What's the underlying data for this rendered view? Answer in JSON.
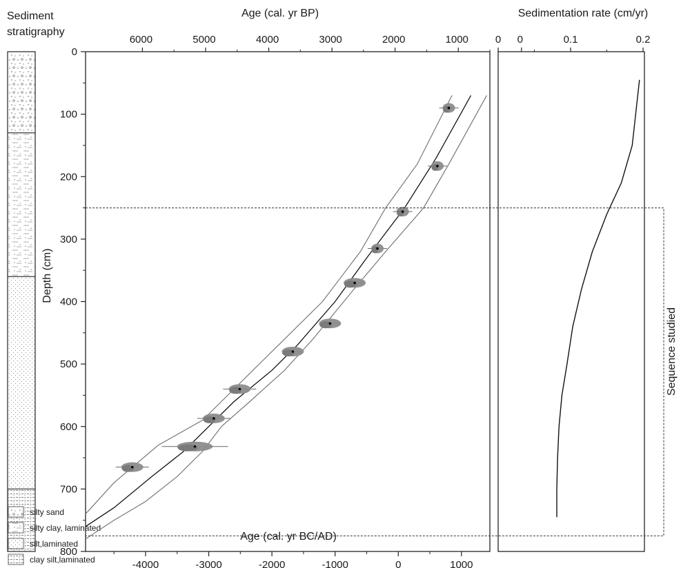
{
  "chart_data": [
    {
      "type": "line",
      "title": "",
      "top_axis_label": "Age  (cal. yr BP)",
      "top_ticks": [
        6000,
        5000,
        4000,
        3000,
        2000,
        1000,
        0
      ],
      "xlabel": "Age (cal. yr BC/AD)",
      "x_ticks": [
        -4000,
        -3000,
        -2000,
        -1000,
        0,
        1000
      ],
      "xlim": [
        -4950,
        1450
      ],
      "ylabel": "Depth (cm)",
      "y_ticks": [
        0,
        100,
        200,
        300,
        400,
        500,
        600,
        700,
        800
      ],
      "ylim": [
        0,
        800
      ],
      "y_inverted": true,
      "dated_samples": [
        {
          "age": 800,
          "depth": 90
        },
        {
          "age": 620,
          "depth": 183
        },
        {
          "age": 70,
          "depth": 256
        },
        {
          "age": -330,
          "depth": 315
        },
        {
          "age": -690,
          "depth": 370
        },
        {
          "age": -1080,
          "depth": 435
        },
        {
          "age": -1670,
          "depth": 480
        },
        {
          "age": -2510,
          "depth": 540
        },
        {
          "age": -2920,
          "depth": 587
        },
        {
          "age": -3220,
          "depth": 632
        },
        {
          "age": -4210,
          "depth": 665
        }
      ],
      "series": [
        {
          "role": "age_model",
          "x": [
            1150,
            600,
            100,
            -500,
            -1000,
            -1600,
            -2000,
            -2600,
            -3000,
            -3400,
            -3900,
            -4500,
            -4950
          ],
          "y": [
            70,
            170,
            250,
            330,
            400,
            470,
            510,
            560,
            600,
            640,
            680,
            730,
            760
          ]
        },
        {
          "role": "lower_bound",
          "x": [
            1400,
            800,
            400,
            -200,
            -700,
            -1350,
            -1800,
            -2350,
            -2800,
            -3100,
            -3500,
            -4000,
            -4500,
            -4950
          ],
          "y": [
            70,
            180,
            250,
            320,
            380,
            460,
            510,
            560,
            600,
            640,
            680,
            720,
            750,
            780
          ]
        },
        {
          "role": "upper_bound",
          "x": [
            850,
            300,
            -200,
            -600,
            -1200,
            -1900,
            -2300,
            -2800,
            -3100,
            -3800,
            -4500,
            -4950
          ],
          "y": [
            70,
            180,
            250,
            320,
            400,
            470,
            510,
            560,
            590,
            630,
            690,
            740
          ]
        }
      ]
    },
    {
      "type": "line",
      "title": "Sedimentation rate (cm/yr)",
      "x_ticks": [
        0,
        0.1,
        0.2
      ],
      "xlim": [
        0,
        0.2
      ],
      "ylim": [
        0,
        800
      ],
      "y_inverted": true,
      "series": [
        {
          "x": [
            0.195,
            0.185,
            0.17,
            0.15,
            0.13,
            0.115,
            0.103,
            0.095,
            0.088,
            0.084,
            0.082,
            0.081,
            0.081
          ],
          "y": [
            45,
            150,
            210,
            260,
            320,
            380,
            440,
            500,
            550,
            600,
            650,
            700,
            745
          ]
        }
      ]
    }
  ],
  "stratigraphy": {
    "title_line1": "Sediment",
    "title_line2": "stratigraphy",
    "layers": [
      {
        "from_depth": 0,
        "to_depth": 130,
        "lithology": "silty sand"
      },
      {
        "from_depth": 130,
        "to_depth": 360,
        "lithology": "silty clay, laminated"
      },
      {
        "from_depth": 360,
        "to_depth": 700,
        "lithology": "silt, laminated"
      },
      {
        "from_depth": 700,
        "to_depth": 800,
        "lithology": "clay silt, laminated"
      }
    ],
    "legend": [
      "silty sand",
      "silty clay, laminated",
      "silt,laminated",
      "clay silt,laminated"
    ]
  },
  "sequence": {
    "label": "Sequence studied",
    "from_depth": 250,
    "to_depth": 775
  }
}
